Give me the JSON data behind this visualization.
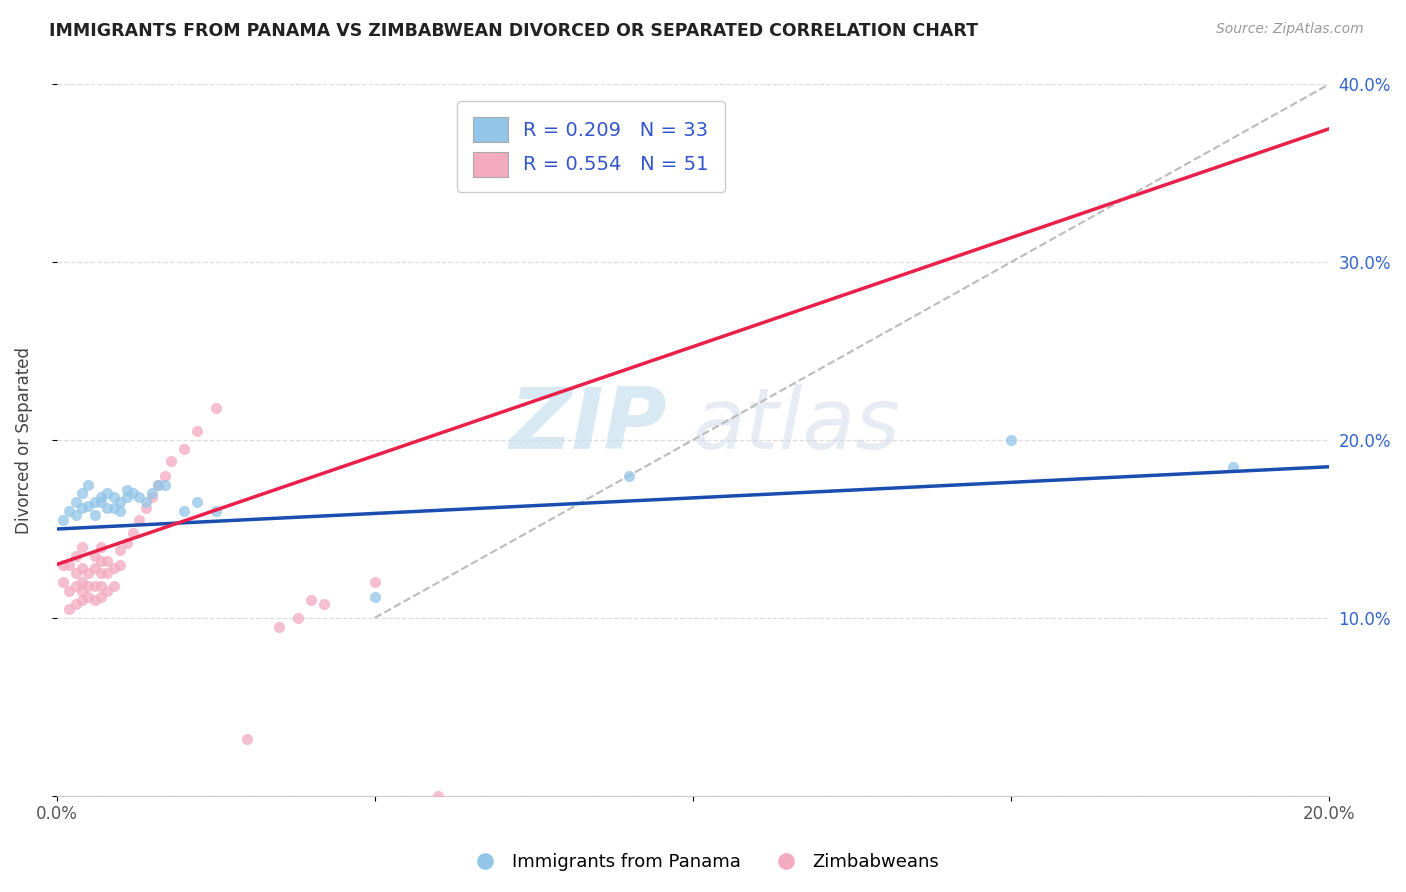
{
  "title": "IMMIGRANTS FROM PANAMA VS ZIMBABWEAN DIVORCED OR SEPARATED CORRELATION CHART",
  "source_text": "Source: ZipAtlas.com",
  "ylabel": "Divorced or Separated",
  "legend_label_1": "Immigrants from Panama",
  "legend_label_2": "Zimbabweans",
  "r1": 0.209,
  "n1": 33,
  "r2": 0.554,
  "n2": 51,
  "color_blue": "#92C5E8",
  "color_pink": "#F4AABF",
  "line_color_blue": "#1A4DB0",
  "line_color_pink": "#E8204A",
  "line_color_dashed": "#BBBBBB",
  "watermark_zip": "ZIP",
  "watermark_atlas": "atlas",
  "xlim": [
    0.0,
    0.2
  ],
  "ylim": [
    0.0,
    0.4
  ],
  "xticks": [
    0.0,
    0.05,
    0.1,
    0.15,
    0.2
  ],
  "yticks": [
    0.0,
    0.1,
    0.2,
    0.3,
    0.4
  ],
  "xticklabels": [
    "0.0%",
    "",
    "",
    "",
    "20.0%"
  ],
  "right_yticklabels": [
    "",
    "10.0%",
    "20.0%",
    "30.0%",
    "40.0%"
  ],
  "blue_scatter_x": [
    0.001,
    0.002,
    0.003,
    0.003,
    0.004,
    0.004,
    0.005,
    0.005,
    0.006,
    0.006,
    0.007,
    0.007,
    0.008,
    0.008,
    0.009,
    0.009,
    0.01,
    0.01,
    0.011,
    0.011,
    0.012,
    0.013,
    0.014,
    0.015,
    0.016,
    0.017,
    0.02,
    0.022,
    0.025,
    0.05,
    0.09,
    0.15,
    0.185
  ],
  "blue_scatter_y": [
    0.155,
    0.16,
    0.158,
    0.165,
    0.162,
    0.17,
    0.163,
    0.175,
    0.165,
    0.158,
    0.165,
    0.168,
    0.162,
    0.17,
    0.162,
    0.168,
    0.165,
    0.16,
    0.168,
    0.172,
    0.17,
    0.168,
    0.165,
    0.17,
    0.175,
    0.175,
    0.16,
    0.165,
    0.16,
    0.112,
    0.18,
    0.2,
    0.185
  ],
  "pink_scatter_x": [
    0.001,
    0.001,
    0.002,
    0.002,
    0.002,
    0.003,
    0.003,
    0.003,
    0.003,
    0.004,
    0.004,
    0.004,
    0.004,
    0.004,
    0.005,
    0.005,
    0.005,
    0.006,
    0.006,
    0.006,
    0.006,
    0.007,
    0.007,
    0.007,
    0.007,
    0.007,
    0.008,
    0.008,
    0.008,
    0.009,
    0.009,
    0.01,
    0.01,
    0.011,
    0.012,
    0.013,
    0.014,
    0.015,
    0.016,
    0.017,
    0.018,
    0.02,
    0.022,
    0.025,
    0.03,
    0.035,
    0.038,
    0.04,
    0.042,
    0.05,
    0.06
  ],
  "pink_scatter_y": [
    0.13,
    0.12,
    0.105,
    0.115,
    0.13,
    0.108,
    0.118,
    0.125,
    0.135,
    0.11,
    0.115,
    0.12,
    0.128,
    0.14,
    0.112,
    0.118,
    0.125,
    0.11,
    0.118,
    0.128,
    0.135,
    0.112,
    0.118,
    0.125,
    0.132,
    0.14,
    0.115,
    0.125,
    0.132,
    0.118,
    0.128,
    0.13,
    0.138,
    0.142,
    0.148,
    0.155,
    0.162,
    0.168,
    0.175,
    0.18,
    0.188,
    0.195,
    0.205,
    0.218,
    0.032,
    0.095,
    0.1,
    0.11,
    0.108,
    0.12,
    0.0
  ],
  "blue_line_x": [
    0.0,
    0.2
  ],
  "blue_line_y": [
    0.15,
    0.185
  ],
  "pink_line_x": [
    0.0,
    0.2
  ],
  "pink_line_y": [
    0.13,
    0.375
  ],
  "dashed_line_x": [
    0.05,
    0.2
  ],
  "dashed_line_y": [
    0.1,
    0.4
  ]
}
